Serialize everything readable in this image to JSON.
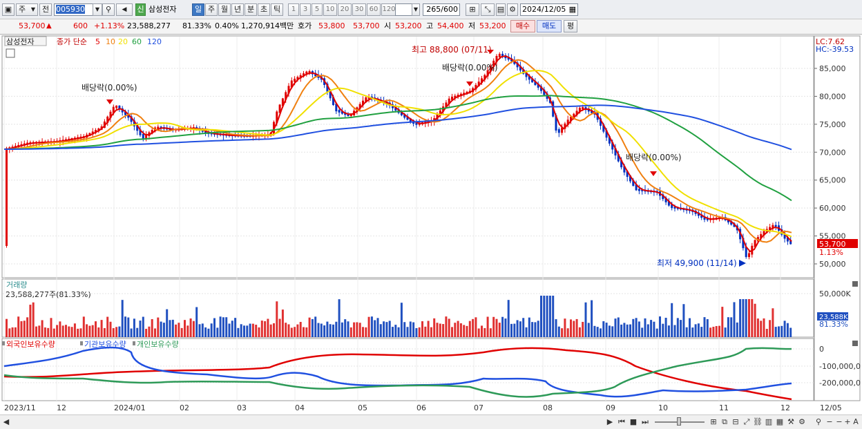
{
  "toolbar": {
    "period_select": "주",
    "prev_label": "전",
    "code": "005930",
    "speaker": "◀",
    "stock_badge": "신",
    "stock_name": "삼성전자",
    "periods": [
      "일",
      "주",
      "월",
      "년",
      "분",
      "초",
      "틱"
    ],
    "selected_period": "일",
    "intervals": [
      "1",
      "3",
      "5",
      "10",
      "20",
      "30",
      "60",
      "120"
    ],
    "count": "265",
    "count_total": "/600",
    "date": "2024/12/05"
  },
  "quote": {
    "price": "53,700",
    "change_arrow": "▲",
    "change": "600",
    "change_pct": "+1.13%",
    "volume": "23,588,277",
    "vol_ratio": "81.33%",
    "turnover": "0.40%",
    "amount": "1,270,914백만",
    "bid_label": "호가",
    "ask": "53,800",
    "bid": "53,700",
    "open_label": "시",
    "open": "53,200",
    "high_label": "고",
    "high": "54,400",
    "low_label": "저",
    "low": "53,200",
    "buy_label": "매수",
    "sell_label": "매도",
    "avg_label": "평"
  },
  "price_panel": {
    "name_tag": "삼성전자",
    "ma_title": "종가 단순",
    "ma_periods": [
      "5",
      "10",
      "20",
      "60",
      "120"
    ],
    "ma_colors": [
      "#e00000",
      "#f08010",
      "#f0e000",
      "#20a040",
      "#2050e0"
    ],
    "lc": "LC:7.62",
    "hc": "HC:-39.53",
    "y_ticks": [
      "85,000",
      "80,000",
      "75,000",
      "70,000",
      "65,000",
      "60,000",
      "55,000",
      "50,000"
    ],
    "current_price": "53,700",
    "current_pct": "1.13%",
    "annotations": {
      "high": "최고 88,800 (07/11)",
      "low": "최저 49,900 (11/14)",
      "div1": "배당락(0.00%)",
      "div2": "배당락(0.00%)",
      "div3": "배당락(0.00%)"
    }
  },
  "volume_panel": {
    "title": "거래량",
    "value": "23,588,277주(81.33%)",
    "y_tick": "50,000K",
    "current": "23,588K",
    "current_pct": "81.33%"
  },
  "holding_panel": {
    "labels": [
      "외국인보유수량",
      "기관보유수량",
      "개인보유수량"
    ],
    "colors": [
      "#e00000",
      "#2050e0",
      "#2e9a58"
    ],
    "y_ticks": [
      "0",
      "-100,000,0",
      "-200,000,0"
    ]
  },
  "x_axis": [
    "2023/11",
    "12",
    "2024/01",
    "02",
    "03",
    "04",
    "05",
    "06",
    "07",
    "08",
    "09",
    "10",
    "11",
    "12",
    "12/05"
  ],
  "chart_data": {
    "type": "candlestick",
    "x_range": [
      "2023/11",
      "2024/12/05"
    ],
    "ylim": [
      48000,
      90000
    ],
    "title": "",
    "series": [
      {
        "name": "5",
        "values": []
      },
      {
        "name": "10",
        "values": []
      },
      {
        "name": "20",
        "values": []
      },
      {
        "name": "60",
        "values": []
      },
      {
        "name": "120",
        "values": []
      }
    ],
    "candles": [],
    "extremes": {
      "high": 88800,
      "high_date": "07/11",
      "low": 49900,
      "low_date": "11/14"
    }
  }
}
